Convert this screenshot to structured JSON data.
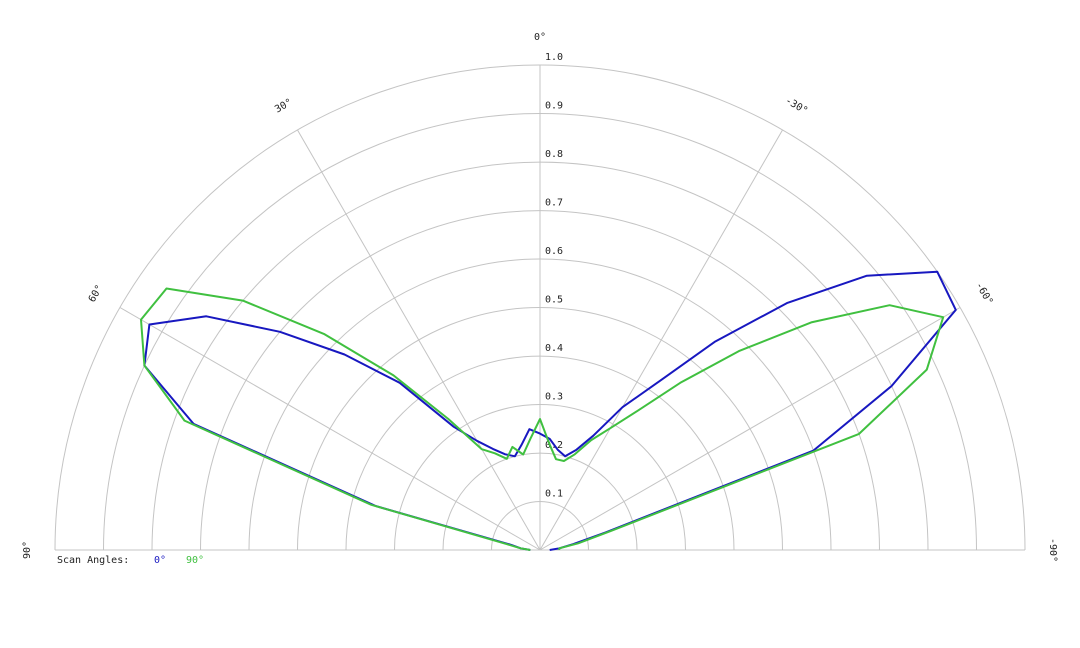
{
  "chart_data": {
    "type": "polar",
    "x": [
      -90,
      -85,
      -80,
      -75,
      -70,
      -65,
      -60,
      -55,
      -50,
      -45,
      -40,
      -35,
      -30,
      -25,
      -20,
      -15,
      -10,
      -5,
      0,
      5,
      10,
      15,
      20,
      25,
      30,
      35,
      40,
      45,
      50,
      55,
      60,
      65,
      70,
      75,
      80,
      85,
      90
    ],
    "xlim": [
      -90,
      90
    ],
    "xticks": [
      {
        "value": -90,
        "label": "-90°"
      },
      {
        "value": -60,
        "label": "-60°"
      },
      {
        "value": -30,
        "label": "-30°"
      },
      {
        "value": 0,
        "label": "0°"
      },
      {
        "value": 30,
        "label": "30°"
      },
      {
        "value": 60,
        "label": "60°"
      },
      {
        "value": 90,
        "label": "90°"
      }
    ],
    "ylim": [
      0,
      1
    ],
    "yticks": [
      0.1,
      0.2,
      0.3,
      0.4,
      0.5,
      0.6,
      0.7,
      0.8,
      0.9,
      {
        "value": 1,
        "label": "1.0"
      }
    ],
    "grid": true,
    "legend_title": "Scan Angles:",
    "series": [
      {
        "name": "0°",
        "color": "#1818c0",
        "values": [
          0.02,
          0.04,
          0.07,
          0.14,
          0.6,
          0.8,
          0.99,
          1.0,
          0.88,
          0.72,
          0.56,
          0.42,
          0.34,
          0.26,
          0.22,
          0.2,
          0.21,
          0.23,
          0.24,
          0.25,
          0.22,
          0.2,
          0.21,
          0.23,
          0.26,
          0.31,
          0.45,
          0.57,
          0.7,
          0.84,
          0.93,
          0.9,
          0.76,
          0.35,
          0.06,
          0.04,
          0.02
        ]
      },
      {
        "name": "90°",
        "color": "#40c040",
        "values": [
          0.04,
          0.04,
          0.08,
          0.15,
          0.7,
          0.88,
          0.96,
          0.88,
          0.73,
          0.58,
          0.45,
          0.35,
          0.29,
          0.25,
          0.21,
          0.19,
          0.19,
          0.22,
          0.27,
          0.23,
          0.2,
          0.22,
          0.2,
          0.22,
          0.24,
          0.33,
          0.47,
          0.63,
          0.8,
          0.94,
          0.95,
          0.9,
          0.78,
          0.36,
          0.07,
          0.04,
          0.02
        ]
      }
    ]
  }
}
